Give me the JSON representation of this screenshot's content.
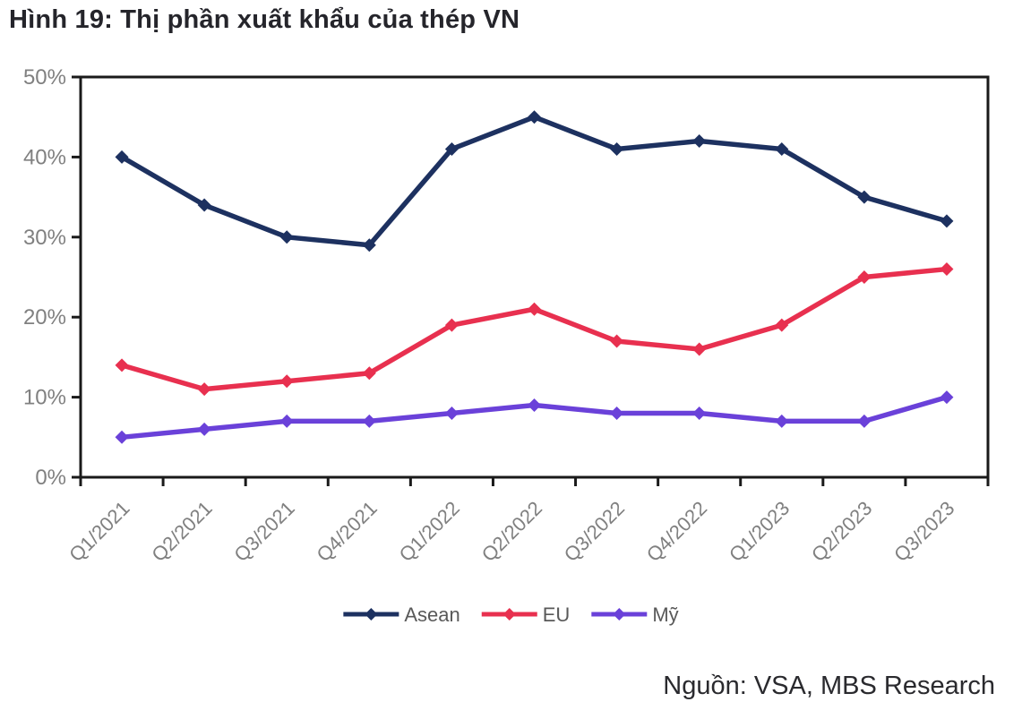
{
  "title": "Hình 19: Thị phần xuất khẩu của thép VN",
  "source": "Nguồn: VSA, MBS Research",
  "chart_data": {
    "type": "line",
    "title": "Thị phần xuất khẩu của thép VN",
    "categories": [
      "Q1/2021",
      "Q2/2021",
      "Q3/2021",
      "Q4/2021",
      "Q1/2022",
      "Q2/2022",
      "Q3/2022",
      "Q4/2022",
      "Q1/2023",
      "Q2/2023",
      "Q3/2023"
    ],
    "series": [
      {
        "name": "Asean",
        "color": "#1d3160",
        "values": [
          40,
          34,
          30,
          29,
          41,
          45,
          41,
          42,
          41,
          35,
          32
        ]
      },
      {
        "name": "EU",
        "color": "#e8304f",
        "values": [
          14,
          11,
          12,
          13,
          19,
          21,
          17,
          16,
          19,
          25,
          26
        ]
      },
      {
        "name": "Mỹ",
        "color": "#6a41d9",
        "values": [
          5,
          6,
          7,
          7,
          8,
          9,
          8,
          8,
          7,
          7,
          10
        ]
      }
    ],
    "ylim": [
      0,
      50
    ],
    "ytick_step": 10,
    "ytick_suffix": "%",
    "marker": "diamond",
    "grid": false,
    "legend_position": "bottom",
    "colors": {
      "axis": "#1a1a1a",
      "tick_labels": "#808080",
      "legend_text": "#595959"
    }
  }
}
